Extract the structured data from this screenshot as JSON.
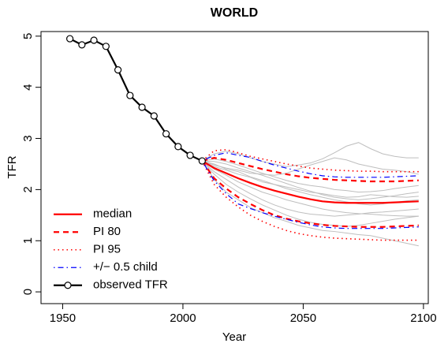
{
  "chart_data": {
    "type": "line",
    "title": "WORLD",
    "x_label": "Year",
    "y_label": "TFR",
    "xlim": [
      1941,
      2102
    ],
    "ylim": [
      -0.23,
      5.09
    ],
    "xticks": [
      1950,
      2000,
      2050,
      2100
    ],
    "yticks": [
      0,
      1,
      2,
      3,
      4,
      5
    ],
    "legend": "bottomleft",
    "trajectories": {
      "color": "#bebebe",
      "x": [
        2008,
        2013,
        2018,
        2023,
        2028,
        2033,
        2038,
        2043,
        2048,
        2053,
        2058,
        2063,
        2068,
        2073,
        2078,
        2083,
        2088,
        2093,
        2098
      ],
      "lines": [
        [
          2.56,
          2.45,
          2.38,
          2.3,
          2.24,
          2.15,
          2.1,
          2.05,
          2.0,
          1.95,
          1.92,
          1.88,
          1.85,
          1.86,
          1.9,
          1.88,
          1.86,
          1.85,
          1.87
        ],
        [
          2.56,
          2.7,
          2.75,
          2.7,
          2.62,
          2.55,
          2.5,
          2.45,
          2.48,
          2.52,
          2.6,
          2.72,
          2.85,
          2.92,
          2.8,
          2.7,
          2.65,
          2.62,
          2.62
        ],
        [
          2.56,
          2.2,
          1.95,
          1.8,
          1.65,
          1.55,
          1.45,
          1.38,
          1.3,
          1.25,
          1.2,
          1.18,
          1.15,
          1.12,
          1.1,
          1.05,
          1.0,
          0.95,
          0.9
        ],
        [
          2.56,
          2.5,
          2.4,
          2.35,
          2.25,
          2.18,
          2.1,
          2.02,
          1.96,
          1.9,
          1.85,
          1.8,
          1.76,
          1.72,
          1.7,
          1.72,
          1.75,
          1.78,
          1.8
        ],
        [
          2.56,
          2.35,
          2.2,
          2.05,
          1.92,
          1.8,
          1.7,
          1.62,
          1.56,
          1.52,
          1.5,
          1.48,
          1.5,
          1.52,
          1.55,
          1.56,
          1.58,
          1.6,
          1.62
        ],
        [
          2.56,
          2.6,
          2.55,
          2.48,
          2.4,
          2.32,
          2.25,
          2.18,
          2.12,
          2.08,
          2.05,
          2.0,
          1.98,
          1.95,
          1.96,
          1.98,
          2.02,
          2.05,
          2.08
        ],
        [
          2.56,
          2.3,
          2.1,
          1.95,
          1.82,
          1.7,
          1.6,
          1.5,
          1.42,
          1.36,
          1.32,
          1.3,
          1.28,
          1.3,
          1.34,
          1.38,
          1.42,
          1.45,
          1.48
        ],
        [
          2.56,
          2.48,
          2.42,
          2.38,
          2.32,
          2.3,
          2.28,
          2.32,
          2.4,
          2.48,
          2.55,
          2.62,
          2.58,
          2.5,
          2.45,
          2.4,
          2.38,
          2.35,
          2.3
        ],
        [
          2.56,
          2.4,
          2.28,
          2.15,
          2.05,
          1.95,
          1.88,
          1.8,
          1.74,
          1.68,
          1.62,
          1.58,
          1.55,
          1.53,
          1.52,
          1.5,
          1.49,
          1.48,
          1.48
        ],
        [
          2.56,
          2.55,
          2.5,
          2.42,
          2.35,
          2.28,
          2.2,
          2.12,
          2.04,
          1.97,
          1.9,
          1.85,
          1.82,
          1.8,
          1.82,
          1.85,
          1.88,
          1.92,
          1.95
        ]
      ]
    },
    "series": [
      {
        "name": "median",
        "color": "#ff0000",
        "dash": "solid",
        "x": [
          2008,
          2013,
          2018,
          2023,
          2028,
          2033,
          2038,
          2043,
          2048,
          2053,
          2058,
          2063,
          2068,
          2073,
          2078,
          2083,
          2088,
          2093,
          2098
        ],
        "values": [
          2.56,
          2.42,
          2.32,
          2.22,
          2.13,
          2.05,
          1.98,
          1.92,
          1.86,
          1.81,
          1.77,
          1.75,
          1.74,
          1.74,
          1.74,
          1.74,
          1.75,
          1.76,
          1.77
        ]
      },
      {
        "name": "PI 80",
        "color": "#ff0000",
        "dash": "dashed",
        "x": [
          2008,
          2013,
          2018,
          2023,
          2028,
          2033,
          2038,
          2043,
          2048,
          2053,
          2058,
          2063,
          2068,
          2073,
          2078,
          2083,
          2088,
          2093,
          2098
        ],
        "upper": [
          2.56,
          2.62,
          2.58,
          2.52,
          2.46,
          2.4,
          2.35,
          2.3,
          2.26,
          2.23,
          2.21,
          2.19,
          2.18,
          2.17,
          2.16,
          2.16,
          2.16,
          2.17,
          2.18
        ],
        "lower": [
          2.56,
          2.22,
          2.02,
          1.85,
          1.72,
          1.6,
          1.5,
          1.43,
          1.38,
          1.34,
          1.31,
          1.29,
          1.28,
          1.27,
          1.27,
          1.27,
          1.28,
          1.29,
          1.3
        ]
      },
      {
        "name": "PI 95",
        "color": "#ff0000",
        "dash": "dotted",
        "x": [
          2008,
          2013,
          2018,
          2023,
          2028,
          2033,
          2038,
          2043,
          2048,
          2053,
          2058,
          2063,
          2068,
          2073,
          2078,
          2083,
          2088,
          2093,
          2098
        ],
        "upper": [
          2.56,
          2.76,
          2.78,
          2.72,
          2.65,
          2.6,
          2.55,
          2.5,
          2.46,
          2.42,
          2.4,
          2.38,
          2.37,
          2.36,
          2.36,
          2.35,
          2.35,
          2.35,
          2.35
        ],
        "lower": [
          2.56,
          2.1,
          1.85,
          1.66,
          1.5,
          1.38,
          1.28,
          1.2,
          1.14,
          1.1,
          1.07,
          1.05,
          1.04,
          1.03,
          1.02,
          1.01,
          1.01,
          1.01,
          1.01
        ]
      },
      {
        "name": "+/− 0.5 child",
        "color": "#0000ff",
        "dash": "dotdash",
        "x": [
          2008,
          2013,
          2018,
          2023,
          2028,
          2033,
          2038,
          2043,
          2048,
          2053,
          2058,
          2063,
          2068,
          2073,
          2078,
          2083,
          2088,
          2093,
          2098
        ],
        "upper": [
          2.56,
          2.67,
          2.72,
          2.67,
          2.63,
          2.55,
          2.48,
          2.42,
          2.36,
          2.31,
          2.27,
          2.25,
          2.24,
          2.24,
          2.24,
          2.24,
          2.25,
          2.26,
          2.27
        ],
        "lower": [
          2.56,
          2.17,
          1.92,
          1.72,
          1.63,
          1.55,
          1.48,
          1.42,
          1.36,
          1.31,
          1.27,
          1.25,
          1.24,
          1.24,
          1.24,
          1.24,
          1.25,
          1.26,
          1.27
        ]
      },
      {
        "name": "observed TFR",
        "color": "#000000",
        "dash": "solid",
        "marker": "circle",
        "x": [
          1953,
          1958,
          1963,
          1968,
          1973,
          1978,
          1983,
          1988,
          1993,
          1998,
          2003,
          2008
        ],
        "values": [
          4.95,
          4.83,
          4.92,
          4.8,
          4.34,
          3.84,
          3.61,
          3.44,
          3.09,
          2.84,
          2.67,
          2.56
        ]
      }
    ]
  }
}
